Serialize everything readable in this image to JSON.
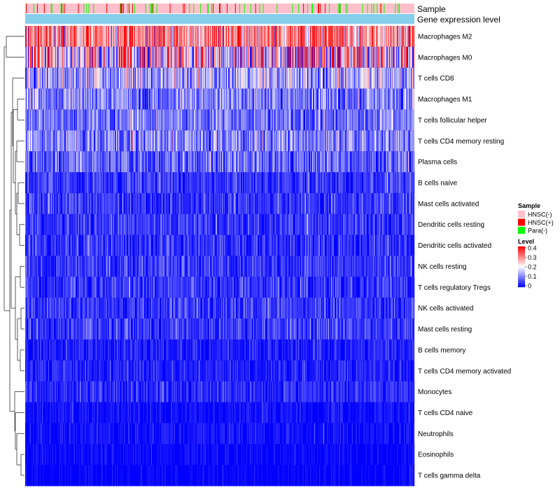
{
  "chart_data": {
    "type": "heatmap",
    "title": "",
    "n_samples": 560,
    "annotation_rows": [
      "Sample",
      "Gene expression level"
    ],
    "rows": [
      {
        "label": "Macrophages M2",
        "mean": 0.3,
        "spread": 0.1
      },
      {
        "label": "Macrophages M0",
        "mean": 0.22,
        "spread": 0.16
      },
      {
        "label": "T cells CD8",
        "mean": 0.14,
        "spread": 0.08
      },
      {
        "label": "Macrophages M1",
        "mean": 0.1,
        "spread": 0.06
      },
      {
        "label": "T cells follicular helper",
        "mean": 0.09,
        "spread": 0.05
      },
      {
        "label": "T cells CD4 memory resting",
        "mean": 0.1,
        "spread": 0.07
      },
      {
        "label": "Plasma cells",
        "mean": 0.07,
        "spread": 0.06
      },
      {
        "label": "B cells naive",
        "mean": 0.04,
        "spread": 0.04
      },
      {
        "label": "Mast cells activated",
        "mean": 0.04,
        "spread": 0.04
      },
      {
        "label": "Dendritic cells resting",
        "mean": 0.04,
        "spread": 0.04
      },
      {
        "label": "Dendritic cells activated",
        "mean": 0.03,
        "spread": 0.04
      },
      {
        "label": "NK cells resting",
        "mean": 0.04,
        "spread": 0.04
      },
      {
        "label": "T cells regulatory  Tregs",
        "mean": 0.04,
        "spread": 0.04
      },
      {
        "label": "NK cells activated",
        "mean": 0.04,
        "spread": 0.04
      },
      {
        "label": "Mast cells resting",
        "mean": 0.04,
        "spread": 0.04
      },
      {
        "label": "B cells memory",
        "mean": 0.02,
        "spread": 0.03
      },
      {
        "label": "T cells CD4 memory activated",
        "mean": 0.02,
        "spread": 0.03
      },
      {
        "label": "Monocytes",
        "mean": 0.03,
        "spread": 0.03
      },
      {
        "label": "T cells CD4 naive",
        "mean": 0.01,
        "spread": 0.02
      },
      {
        "label": "Neutrophils",
        "mean": 0.01,
        "spread": 0.02
      },
      {
        "label": "Eosinophils",
        "mean": 0.005,
        "spread": 0.015
      },
      {
        "label": "T cells gamma delta",
        "mean": 0.004,
        "spread": 0.012
      }
    ],
    "color_scale": {
      "min": 0,
      "mid": 0.2,
      "max": 0.4,
      "low": "#0000FF",
      "mid_color": "#FFFFFF",
      "high": "#FF0000"
    },
    "legend": {
      "sample": {
        "title": "Sample",
        "items": [
          {
            "label": "HNSC(-)",
            "color": "#FFC0CB"
          },
          {
            "label": "HNSC(+)",
            "color": "#FF0000"
          },
          {
            "label": "Para(-)",
            "color": "#00FF00"
          }
        ]
      },
      "level": {
        "title": "Level",
        "ticks": [
          "0.4",
          "0.3",
          "0.2",
          "0.1",
          "0"
        ]
      }
    },
    "gene_expression_color": "#87CEEB",
    "sample_mix": {
      "HNSC(-)": 0.86,
      "HNSC(+)": 0.05,
      "Para(-)": 0.09
    },
    "legend_placement": "right",
    "dendrogram": "rows, left"
  }
}
